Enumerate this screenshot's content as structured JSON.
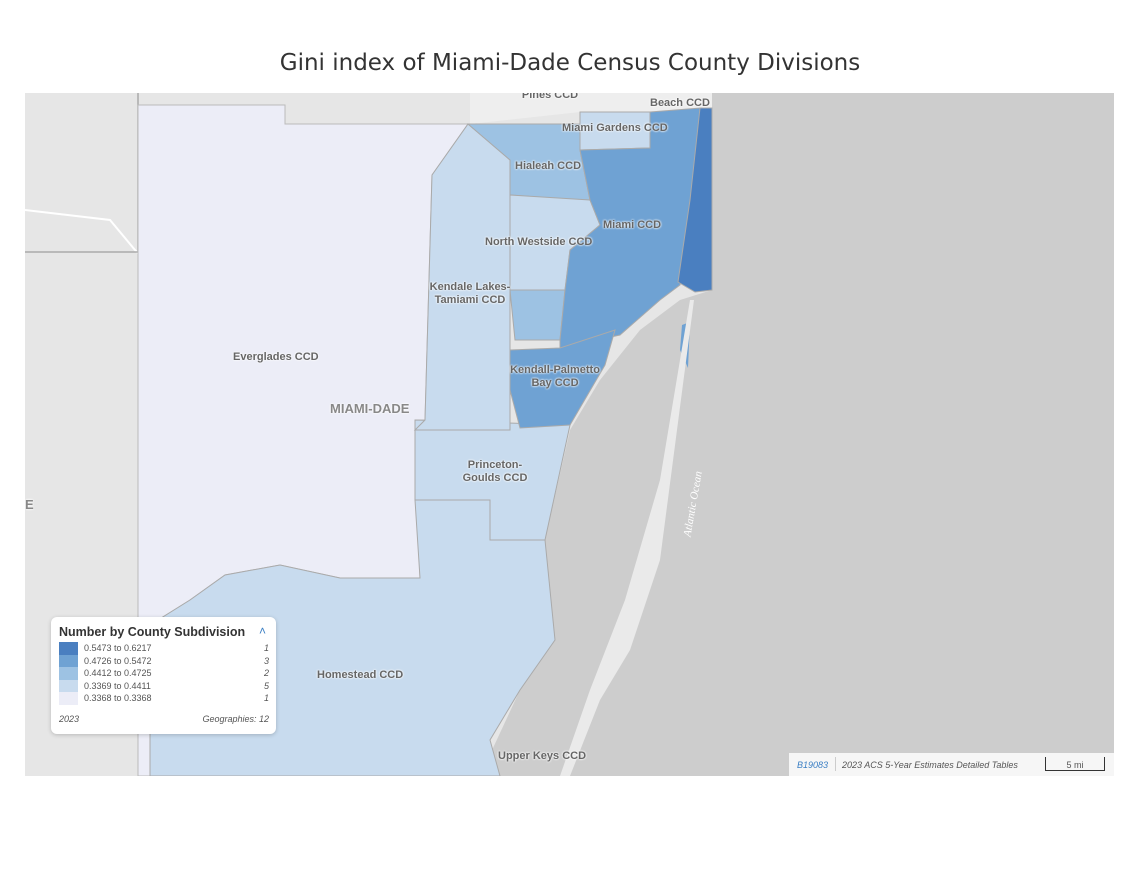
{
  "title": "Gini index of Miami-Dade Census County Divisions",
  "colors": {
    "bin1": "#4a7fc0",
    "bin2": "#6fa2d3",
    "bin3": "#9dc2e3",
    "bin4": "#c8dbee",
    "bin5": "#ecedf7",
    "ocean": "#cdcdcd",
    "land": "#e6e6e6"
  },
  "map": {
    "county_label": "MIAMI-DADE",
    "ocean_label": "Atlantic Ocean",
    "edge_letter": "E",
    "places": {
      "pines": "Pines CCD",
      "beach": "Beach CCD",
      "miami_gardens": "Miami Gardens CCD",
      "hialeah": "Hialeah CCD",
      "miami": "Miami CCD",
      "north_westside": "North Westside CCD",
      "kendale": "Kendale Lakes-\nTamiami CCD",
      "everglades": "Everglades CCD",
      "kendall": "Kendall-Palmetto\nBay CCD",
      "princeton": "Princeton-\nGoulds CCD",
      "homestead": "Homestead CCD",
      "upper_keys": "Upper Keys CCD"
    }
  },
  "legend": {
    "title": "Number by County Subdivision",
    "bins": [
      {
        "range": "0.5473 to 0.6217",
        "count": "1"
      },
      {
        "range": "0.4726 to 0.5472",
        "count": "3"
      },
      {
        "range": "0.4412 to 0.4725",
        "count": "2"
      },
      {
        "range": "0.3369 to 0.4411",
        "count": "5"
      },
      {
        "range": "0.3368 to 0.3368",
        "count": "1"
      }
    ],
    "year": "2023",
    "geographies": "Geographies: 12"
  },
  "attribution": {
    "table_code": "B19083",
    "source": "2023 ACS 5-Year Estimates Detailed Tables",
    "scale": "5 mi"
  }
}
